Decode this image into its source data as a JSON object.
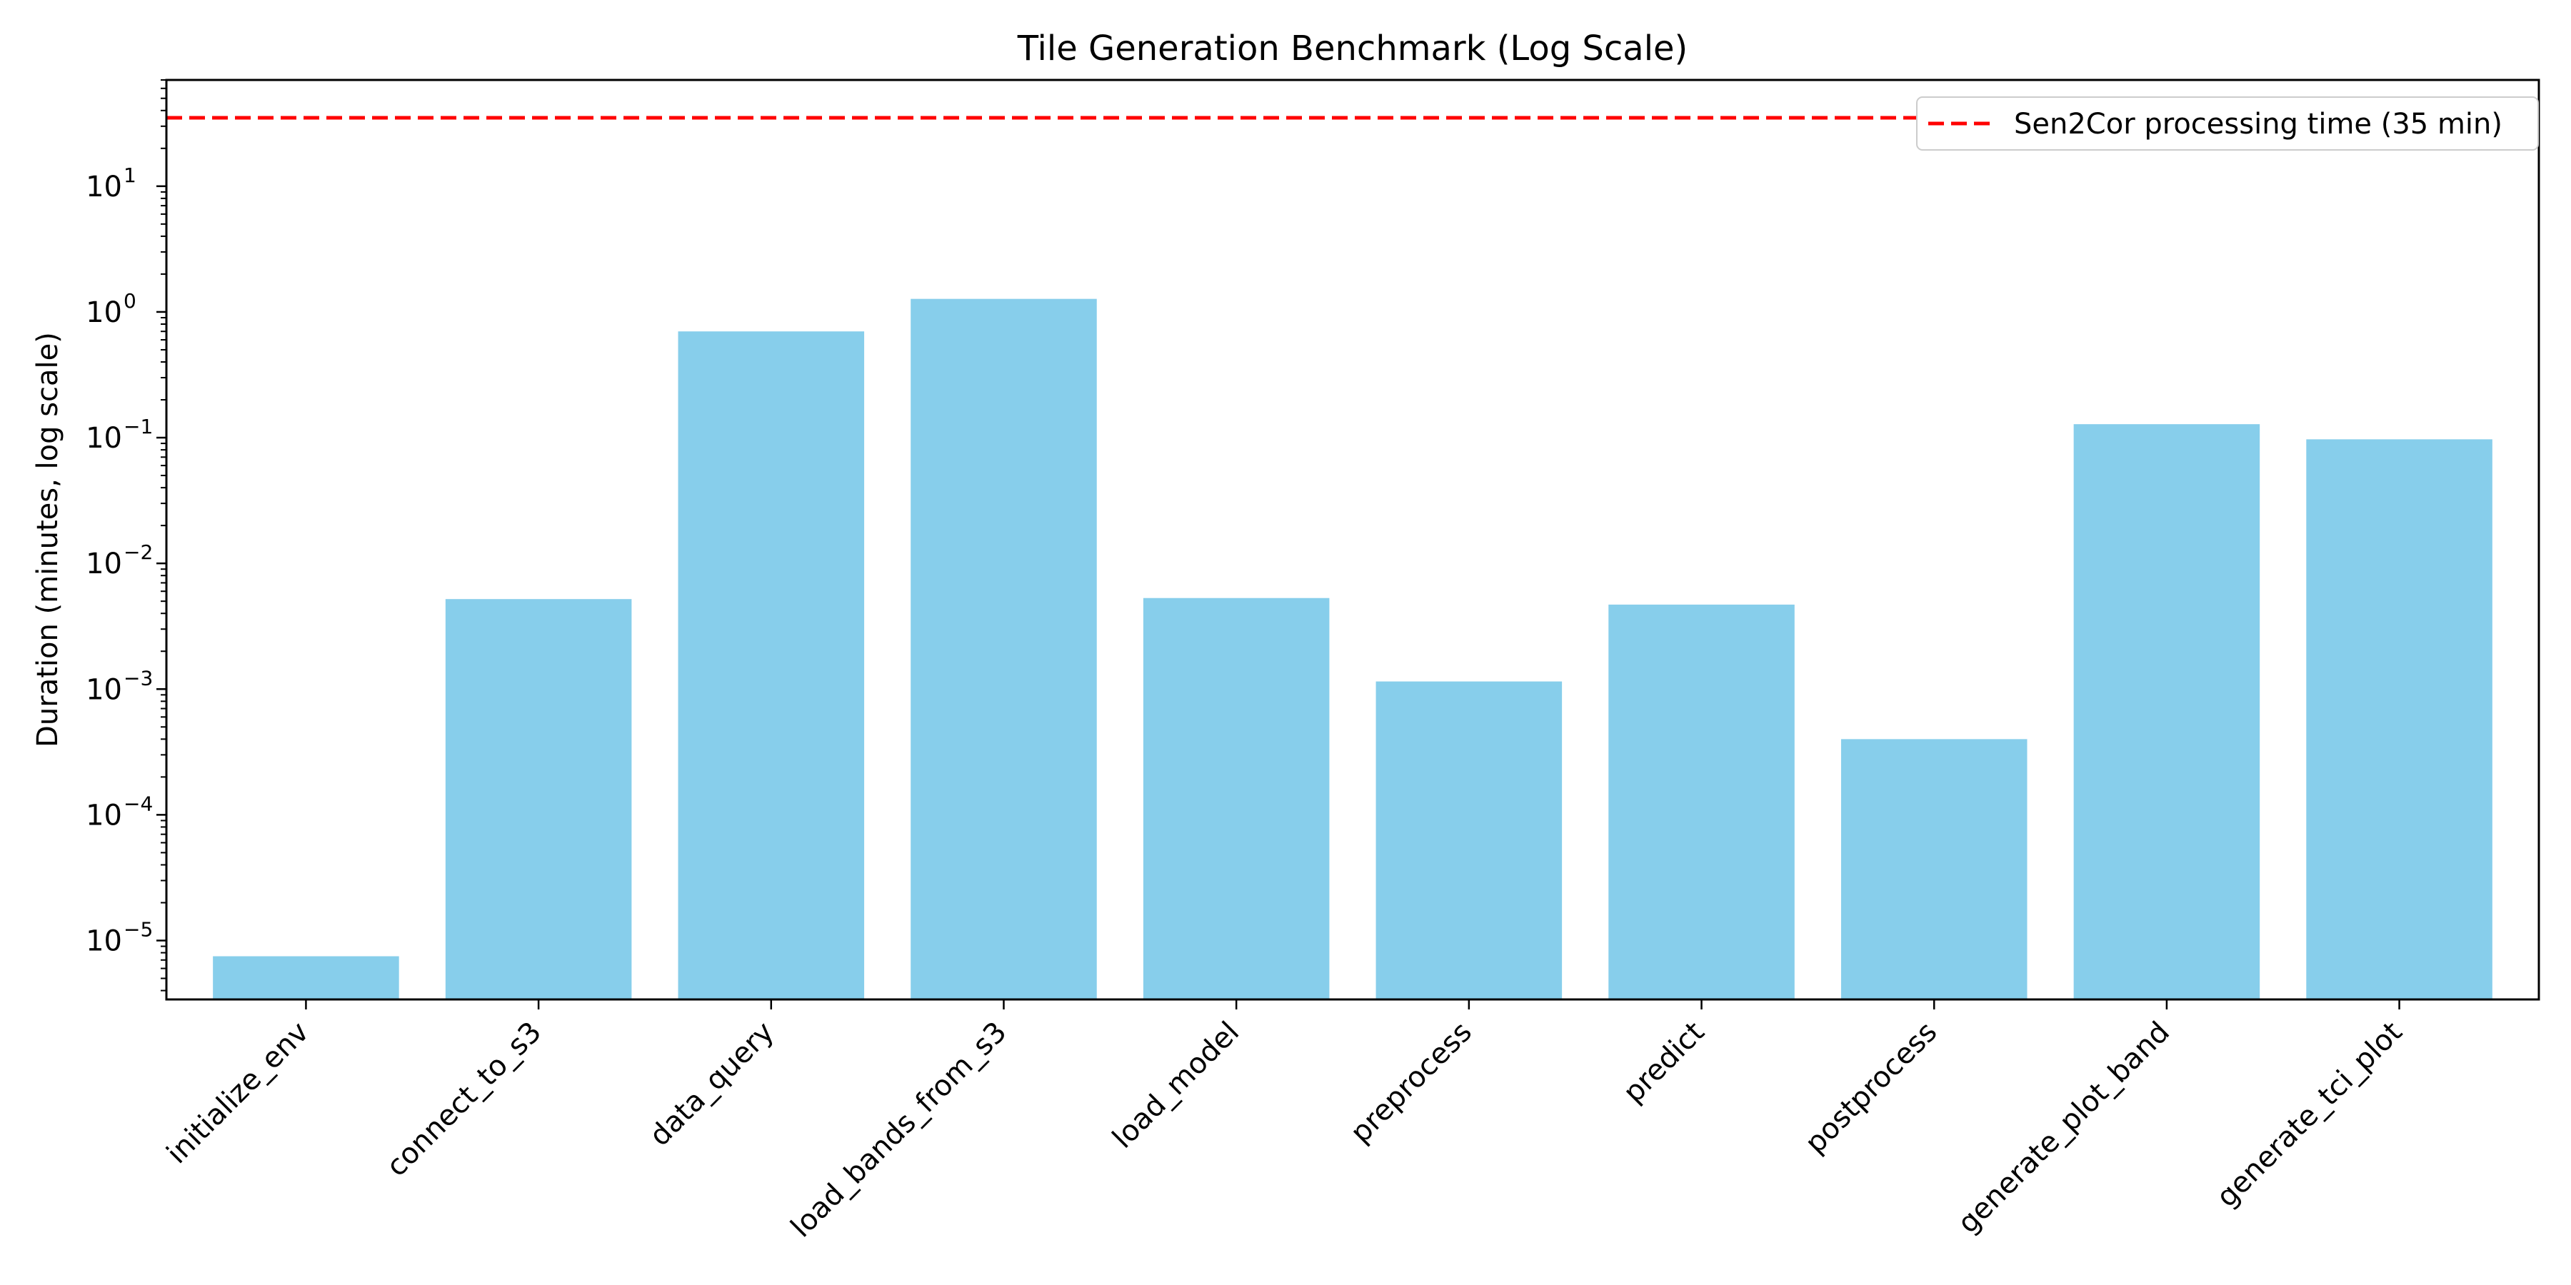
{
  "chart_data": {
    "type": "bar",
    "title": "Tile Generation Benchmark (Log Scale)",
    "xlabel": "",
    "ylabel": "Duration (minutes, log scale)",
    "yscale": "log",
    "ylim": [
      3.4e-06,
      70
    ],
    "categories": [
      "initialize_env",
      "connect_to_s3",
      "data_query",
      "load_bands_from_s3",
      "load_model",
      "preprocess",
      "predict",
      "postprocess",
      "generate_plot_band",
      "generate_tci_plot"
    ],
    "values": [
      7.5e-06,
      0.0052,
      0.7,
      1.27,
      0.0053,
      0.00115,
      0.0047,
      0.0004,
      0.128,
      0.097
    ],
    "bar_color": "#87CEEB",
    "yticks": [
      {
        "base": "10",
        "exp": "1",
        "value": 10
      },
      {
        "base": "10",
        "exp": "0",
        "value": 1
      },
      {
        "base": "10",
        "exp": "−1",
        "value": 0.1
      },
      {
        "base": "10",
        "exp": "−2",
        "value": 0.01
      },
      {
        "base": "10",
        "exp": "−3",
        "value": 0.001
      },
      {
        "base": "10",
        "exp": "−4",
        "value": 0.0001
      },
      {
        "base": "10",
        "exp": "−5",
        "value": 1e-05
      }
    ],
    "reference_line": {
      "value": 35,
      "label": "Sen2Cor processing time (35 min)",
      "color": "#ff0000",
      "style": "dashed"
    },
    "legend_position": "upper right"
  }
}
